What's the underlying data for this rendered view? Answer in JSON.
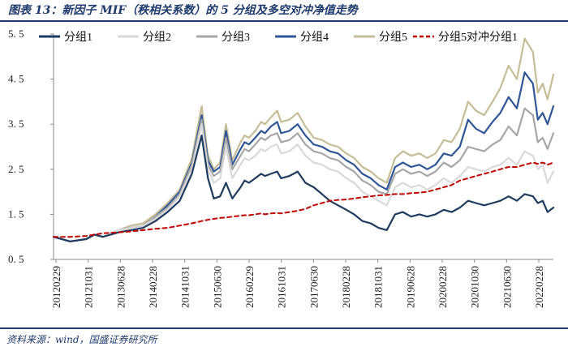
{
  "caption": "图表 13：新因子 MIF（秩相关系数）的 5 分组及多空对冲净值走势",
  "source": "资料来源：wind，国盛证券研究所",
  "colors": {
    "group1": "#1f3a5f",
    "group2": "#d9d9d9",
    "group3": "#a6a6a6",
    "group4": "#2f5597",
    "group5": "#c4bd97",
    "hedge": "#c00000",
    "rule": "#1f3a6e"
  },
  "chart_data": {
    "type": "line",
    "title": "新因子 MIF（秩相关系数）的 5 分组及多空对冲净值走势",
    "xlabel": "",
    "ylabel": "",
    "ylim": [
      0.5,
      5.5
    ],
    "yticks": [
      "0. 5",
      "1. 5",
      "2. 5",
      "3. 5",
      "4. 5",
      "5. 5"
    ],
    "ytick_values": [
      0.5,
      1.5,
      2.5,
      3.5,
      4.5,
      5.5
    ],
    "xticks": [
      "20120229",
      "20121031",
      "20130628",
      "20140228",
      "20141031",
      "20150630",
      "20160229",
      "20161031",
      "20170630",
      "20180228",
      "20181031",
      "20190628",
      "20200228",
      "20201030",
      "20210630",
      "20220228"
    ],
    "x": [
      2012.16,
      2012.5,
      2012.83,
      2013.0,
      2013.17,
      2013.5,
      2013.75,
      2014.0,
      2014.25,
      2014.5,
      2014.75,
      2015.0,
      2015.2,
      2015.33,
      2015.45,
      2015.58,
      2015.7,
      2015.83,
      2016.0,
      2016.08,
      2016.17,
      2016.3,
      2016.42,
      2016.5,
      2016.62,
      2016.75,
      2016.83,
      2017.0,
      2017.17,
      2017.33,
      2017.5,
      2017.67,
      2017.83,
      2018.0,
      2018.17,
      2018.33,
      2018.5,
      2018.67,
      2018.83,
      2019.0,
      2019.17,
      2019.33,
      2019.5,
      2019.67,
      2019.83,
      2020.0,
      2020.17,
      2020.33,
      2020.5,
      2020.67,
      2020.83,
      2021.0,
      2021.17,
      2021.33,
      2021.5,
      2021.67,
      2021.83,
      2022.0,
      2022.1,
      2022.2,
      2022.3,
      2022.42
    ],
    "series": [
      {
        "name": "分组1",
        "style": "solid",
        "values": [
          1.0,
          0.9,
          0.95,
          1.05,
          1.0,
          1.1,
          1.15,
          1.2,
          1.35,
          1.55,
          1.8,
          2.4,
          3.25,
          2.3,
          1.85,
          1.9,
          2.2,
          1.85,
          2.1,
          2.25,
          2.2,
          2.3,
          2.4,
          2.35,
          2.4,
          2.45,
          2.3,
          2.35,
          2.45,
          2.2,
          2.1,
          1.95,
          1.8,
          1.7,
          1.6,
          1.5,
          1.35,
          1.3,
          1.2,
          1.15,
          1.5,
          1.55,
          1.45,
          1.5,
          1.45,
          1.5,
          1.6,
          1.55,
          1.65,
          1.8,
          1.75,
          1.7,
          1.75,
          1.8,
          1.9,
          1.8,
          1.95,
          1.9,
          1.75,
          1.8,
          1.55,
          1.65
        ]
      },
      {
        "name": "分组2",
        "style": "solid",
        "values": [
          1.0,
          0.9,
          0.95,
          1.05,
          1.0,
          1.15,
          1.2,
          1.25,
          1.4,
          1.6,
          1.9,
          2.5,
          3.5,
          2.5,
          2.2,
          2.3,
          3.0,
          2.3,
          2.6,
          2.75,
          2.7,
          2.8,
          2.95,
          2.9,
          3.0,
          3.05,
          2.85,
          2.9,
          3.05,
          2.8,
          2.65,
          2.6,
          2.5,
          2.45,
          2.3,
          2.2,
          2.0,
          1.9,
          1.8,
          1.7,
          2.1,
          2.2,
          2.1,
          2.15,
          2.05,
          2.15,
          2.3,
          2.2,
          2.35,
          2.55,
          2.5,
          2.45,
          2.55,
          2.6,
          2.75,
          2.6,
          2.9,
          2.8,
          2.5,
          2.6,
          2.2,
          2.45
        ]
      },
      {
        "name": "分组3",
        "style": "solid",
        "values": [
          1.0,
          0.9,
          0.95,
          1.05,
          1.0,
          1.15,
          1.2,
          1.25,
          1.45,
          1.65,
          1.95,
          2.6,
          3.6,
          2.6,
          2.35,
          2.45,
          3.2,
          2.5,
          2.8,
          2.95,
          2.9,
          3.05,
          3.2,
          3.15,
          3.25,
          3.3,
          3.1,
          3.15,
          3.3,
          3.05,
          2.9,
          2.85,
          2.75,
          2.7,
          2.55,
          2.45,
          2.25,
          2.15,
          2.0,
          1.95,
          2.4,
          2.5,
          2.4,
          2.45,
          2.35,
          2.45,
          2.65,
          2.55,
          2.7,
          3.0,
          2.95,
          2.9,
          3.05,
          3.15,
          3.45,
          3.25,
          3.85,
          3.7,
          3.1,
          3.2,
          2.95,
          3.3
        ]
      },
      {
        "name": "分组4",
        "style": "solid",
        "values": [
          1.0,
          0.9,
          0.95,
          1.05,
          1.0,
          1.15,
          1.2,
          1.25,
          1.45,
          1.7,
          2.0,
          2.65,
          3.7,
          2.7,
          2.45,
          2.55,
          3.35,
          2.6,
          2.95,
          3.1,
          3.05,
          3.2,
          3.35,
          3.3,
          3.45,
          3.55,
          3.3,
          3.35,
          3.5,
          3.25,
          3.05,
          3.0,
          2.9,
          2.85,
          2.7,
          2.6,
          2.4,
          2.3,
          2.15,
          2.05,
          2.55,
          2.65,
          2.55,
          2.6,
          2.5,
          2.6,
          2.85,
          2.8,
          3.0,
          3.6,
          3.4,
          3.3,
          3.55,
          3.75,
          4.1,
          3.85,
          4.65,
          4.4,
          3.6,
          3.75,
          3.5,
          3.9
        ]
      },
      {
        "name": "分组5",
        "style": "solid",
        "values": [
          1.0,
          0.9,
          0.95,
          1.05,
          1.0,
          1.15,
          1.25,
          1.3,
          1.5,
          1.75,
          2.05,
          2.75,
          3.9,
          2.8,
          2.5,
          2.65,
          3.5,
          2.7,
          3.1,
          3.25,
          3.2,
          3.35,
          3.55,
          3.5,
          3.65,
          3.8,
          3.55,
          3.6,
          3.75,
          3.45,
          3.2,
          3.15,
          3.05,
          3.0,
          2.85,
          2.75,
          2.55,
          2.45,
          2.3,
          2.2,
          2.75,
          2.9,
          2.8,
          2.85,
          2.75,
          2.85,
          3.15,
          3.1,
          3.4,
          4.0,
          3.8,
          3.7,
          4.0,
          4.3,
          4.8,
          4.5,
          5.4,
          5.1,
          4.2,
          4.4,
          4.05,
          4.6
        ]
      },
      {
        "name": "分组5对冲分组1",
        "style": "dashed",
        "values": [
          1.0,
          1.0,
          1.02,
          1.05,
          1.08,
          1.1,
          1.12,
          1.15,
          1.18,
          1.2,
          1.25,
          1.3,
          1.35,
          1.38,
          1.4,
          1.42,
          1.43,
          1.45,
          1.47,
          1.48,
          1.48,
          1.5,
          1.52,
          1.5,
          1.52,
          1.53,
          1.52,
          1.55,
          1.58,
          1.62,
          1.7,
          1.75,
          1.8,
          1.82,
          1.83,
          1.85,
          1.88,
          1.9,
          1.92,
          1.93,
          1.95,
          1.95,
          1.97,
          1.98,
          2.0,
          2.05,
          2.1,
          2.15,
          2.25,
          2.3,
          2.35,
          2.4,
          2.45,
          2.5,
          2.55,
          2.55,
          2.6,
          2.65,
          2.62,
          2.65,
          2.6,
          2.65
        ]
      }
    ]
  }
}
